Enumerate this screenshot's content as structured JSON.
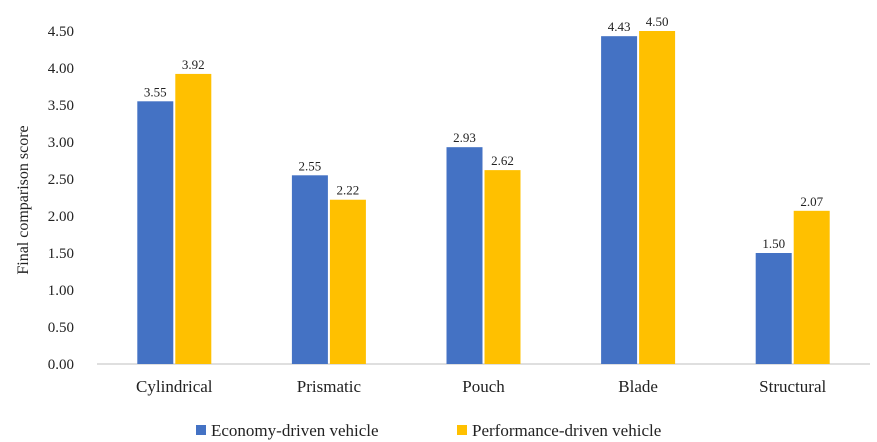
{
  "chart_data": {
    "type": "bar",
    "title": "",
    "xlabel": "",
    "ylabel": "Final comparison score",
    "ylim": [
      0,
      4.5
    ],
    "ytick_step": 0.5,
    "yticks": [
      "0.00",
      "0.50",
      "1.00",
      "1.50",
      "2.00",
      "2.50",
      "3.00",
      "3.50",
      "4.00",
      "4.50"
    ],
    "grid": false,
    "legend_position": "bottom",
    "categories": [
      "Cylindrical",
      "Prismatic",
      "Pouch",
      "Blade",
      "Structural"
    ],
    "series": [
      {
        "name": "Economy-driven vehicle",
        "color": "#4472C4",
        "values": [
          3.55,
          2.55,
          2.93,
          4.43,
          1.5
        ],
        "labels": [
          "3.55",
          "2.55",
          "2.93",
          "4.43",
          "1.50"
        ]
      },
      {
        "name": "Performance-driven vehicle",
        "color": "#FFC000",
        "values": [
          3.92,
          2.22,
          2.62,
          4.5,
          2.07
        ],
        "labels": [
          "3.92",
          "2.22",
          "2.62",
          "4.50",
          "2.07"
        ]
      }
    ]
  }
}
